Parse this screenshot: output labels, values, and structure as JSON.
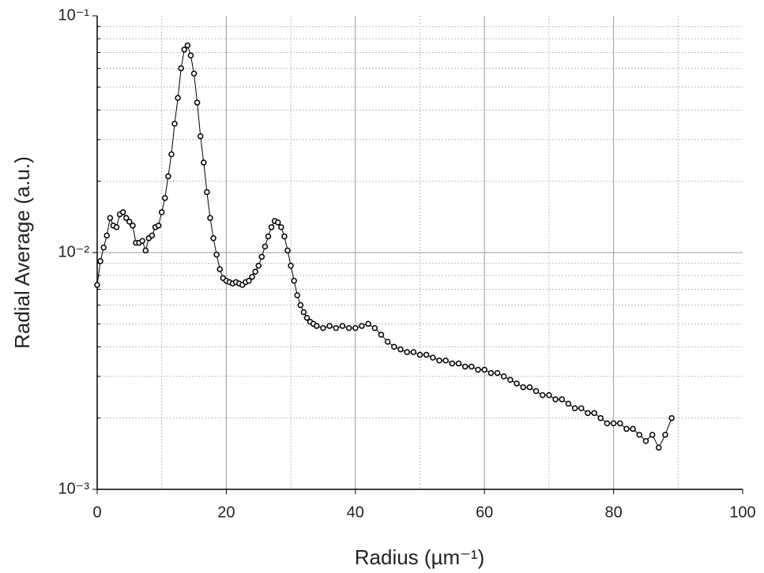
{
  "chart_data": {
    "type": "scatter-line",
    "xlabel": "Radius (µm⁻¹)",
    "ylabel": "Radial Average (a.u.)",
    "xlim": [
      0,
      100
    ],
    "xticks": [
      0,
      20,
      40,
      60,
      80,
      100
    ],
    "xminor": [
      10,
      30,
      50,
      70,
      90
    ],
    "ylim": [
      0.001,
      0.1
    ],
    "yticks": [
      {
        "value": 0.001,
        "label": "10⁻³"
      },
      {
        "value": 0.01,
        "label": "10⁻²"
      },
      {
        "value": 0.1,
        "label": "10⁻¹"
      }
    ],
    "yminor": [
      0.002,
      0.003,
      0.004,
      0.005,
      0.006,
      0.007,
      0.008,
      0.009,
      0.02,
      0.03,
      0.04,
      0.05,
      0.06,
      0.07,
      0.08,
      0.09
    ],
    "yscale": "log",
    "grid": true,
    "color": "#000000",
    "x": [
      0,
      0.5,
      1,
      1.5,
      2,
      2.5,
      3,
      3.5,
      4,
      4.5,
      5,
      5.5,
      6,
      6.5,
      7,
      7.5,
      8,
      8.5,
      9,
      9.5,
      10,
      10.5,
      11,
      11.5,
      12,
      12.5,
      13,
      13.5,
      14,
      14.5,
      15,
      15.5,
      16,
      16.5,
      17,
      17.5,
      18,
      18.5,
      19,
      19.5,
      20,
      20.5,
      21,
      21.5,
      22,
      22.5,
      23,
      23.5,
      24,
      24.5,
      25,
      25.5,
      26,
      26.5,
      27,
      27.5,
      28,
      28.5,
      29,
      29.5,
      30,
      30.5,
      31,
      31.5,
      32,
      32.5,
      33,
      33.5,
      34,
      35,
      36,
      37,
      38,
      39,
      40,
      41,
      42,
      43,
      44,
      45,
      46,
      47,
      48,
      49,
      50,
      51,
      52,
      53,
      54,
      55,
      56,
      57,
      58,
      59,
      60,
      61,
      62,
      63,
      64,
      65,
      66,
      67,
      68,
      69,
      70,
      71,
      72,
      73,
      74,
      75,
      76,
      77,
      78,
      79,
      80,
      81,
      82,
      83,
      84,
      85,
      86,
      87,
      88,
      89
    ],
    "values": [
      0.0073,
      0.0092,
      0.0105,
      0.0118,
      0.014,
      0.013,
      0.0128,
      0.0145,
      0.0148,
      0.014,
      0.0135,
      0.013,
      0.011,
      0.011,
      0.0112,
      0.0102,
      0.0115,
      0.0118,
      0.0128,
      0.013,
      0.0148,
      0.017,
      0.021,
      0.026,
      0.035,
      0.045,
      0.06,
      0.072,
      0.075,
      0.068,
      0.057,
      0.043,
      0.031,
      0.024,
      0.018,
      0.014,
      0.0115,
      0.0098,
      0.0085,
      0.0078,
      0.0076,
      0.0075,
      0.0074,
      0.0075,
      0.0074,
      0.0073,
      0.0075,
      0.0076,
      0.0079,
      0.0083,
      0.0088,
      0.0096,
      0.0106,
      0.0117,
      0.0128,
      0.0136,
      0.0134,
      0.0128,
      0.0117,
      0.0102,
      0.0088,
      0.0076,
      0.0066,
      0.006,
      0.0056,
      0.0053,
      0.0051,
      0.005,
      0.0049,
      0.0048,
      0.0049,
      0.0048,
      0.0049,
      0.0048,
      0.0048,
      0.0049,
      0.005,
      0.0048,
      0.0045,
      0.0042,
      0.004,
      0.0039,
      0.0038,
      0.0038,
      0.0037,
      0.0037,
      0.0036,
      0.0035,
      0.0035,
      0.0034,
      0.0034,
      0.0033,
      0.0033,
      0.0032,
      0.0032,
      0.0031,
      0.0031,
      0.003,
      0.0029,
      0.0028,
      0.0027,
      0.0027,
      0.0026,
      0.0025,
      0.0025,
      0.0024,
      0.0024,
      0.0023,
      0.0022,
      0.0022,
      0.0021,
      0.0021,
      0.002,
      0.0019,
      0.0019,
      0.0019,
      0.0018,
      0.0018,
      0.0017,
      0.0016,
      0.0017,
      0.0015,
      0.0017,
      0.002
    ]
  }
}
